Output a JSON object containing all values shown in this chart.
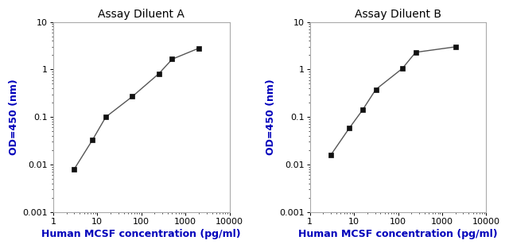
{
  "panel_A": {
    "title": "Assay Diluent A",
    "x": [
      3,
      7.8,
      15.6,
      62.5,
      250,
      500,
      2000
    ],
    "y": [
      0.008,
      0.033,
      0.1,
      0.27,
      0.82,
      1.65,
      2.8
    ],
    "xlabel": "Human MCSF concentration (pg/ml)",
    "ylabel": "OD=450 (nm)",
    "xlim": [
      1,
      8000
    ],
    "ylim": [
      0.001,
      10
    ]
  },
  "panel_B": {
    "title": "Assay Diluent B",
    "x": [
      3,
      7.8,
      15.6,
      31.25,
      125,
      250,
      2000
    ],
    "y": [
      0.016,
      0.058,
      0.14,
      0.38,
      1.05,
      2.3,
      3.0
    ],
    "xlabel": "Human MCSF concentration (pg/ml)",
    "ylabel": "OD=450 (nm)",
    "xlim": [
      1,
      8000
    ],
    "ylim": [
      0.001,
      10
    ]
  },
  "line_color": "#555555",
  "marker_color": "#111111",
  "title_fontsize": 10,
  "label_fontsize": 9,
  "tick_fontsize": 8,
  "text_color": "#000000",
  "xlabel_color": "#0000bb",
  "ylabel_color": "#0000bb",
  "title_color": "#000000",
  "spine_color": "#aaaaaa",
  "yticks": [
    0.001,
    0.01,
    0.1,
    1,
    10
  ],
  "xticks": [
    1,
    10,
    100,
    1000,
    10000
  ],
  "ytick_labels": [
    "0.001",
    "0.01",
    "0.1",
    "1",
    "10"
  ],
  "xtick_labels": [
    "1",
    "10",
    "100",
    "1000",
    "10000"
  ]
}
